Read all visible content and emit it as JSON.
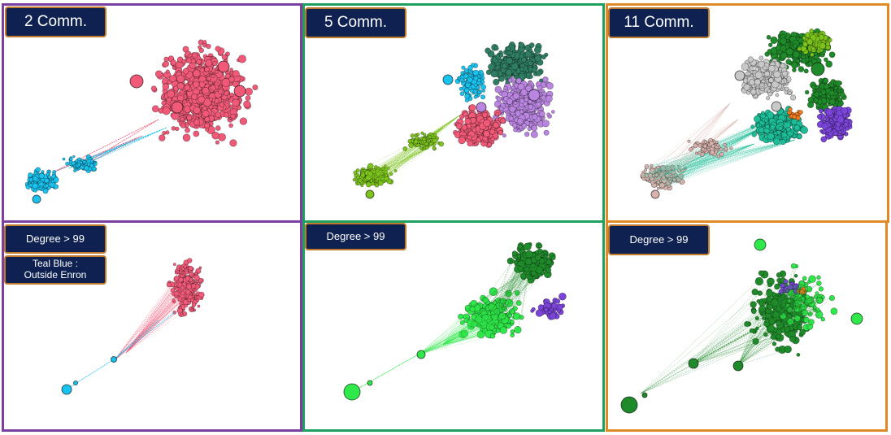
{
  "colors": {
    "frame_purple": "#7b3fa0",
    "frame_green": "#1fa060",
    "frame_orange": "#e08a26",
    "label_bg": "#0e2150",
    "label_border": "#c07a2c",
    "pink": "#f05a78",
    "cyan": "#19c3f0",
    "lime": "#7cc41c",
    "teal_dark": "#2f7d63",
    "violet": "#b985e0",
    "light_green": "#2fe84a",
    "dark_green": "#1f8a2a",
    "purple": "#7a44d8",
    "grey": "#c8c8c8",
    "mauve": "#d8b3ad",
    "teal": "#1dbd98",
    "yellow_green": "#7cc41c",
    "orange": "#f07a20"
  },
  "panels": {
    "top_left": {
      "label": "2 Comm."
    },
    "top_mid": {
      "label": "5 Comm."
    },
    "top_right": {
      "label": "11 Comm."
    },
    "bottom_left": {
      "label": "Degree > 99",
      "note": "Teal Blue :\nOutside Enron"
    },
    "bottom_mid": {
      "label": "Degree > 99"
    },
    "bottom_right": {
      "label": "Degree > 99"
    }
  }
}
